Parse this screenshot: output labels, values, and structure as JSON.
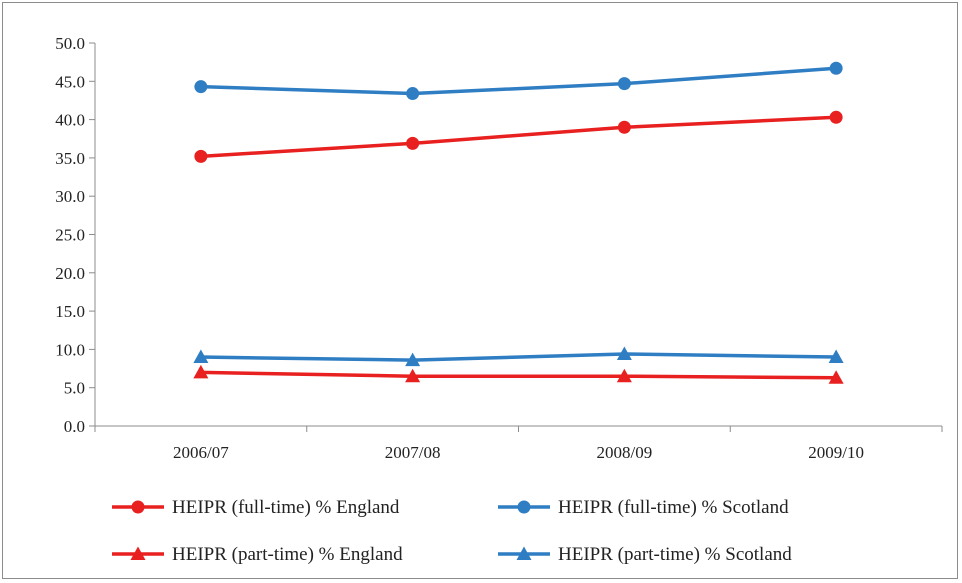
{
  "chart_data": {
    "type": "line",
    "categories": [
      "2006/07",
      "2007/08",
      "2008/09",
      "2009/10"
    ],
    "ylim": [
      0,
      50
    ],
    "yticks": [
      "0.0",
      "5.0",
      "10.0",
      "15.0",
      "20.0",
      "25.0",
      "30.0",
      "35.0",
      "40.0",
      "45.0",
      "50.0"
    ],
    "grid": false,
    "legend_position": "bottom",
    "series": [
      {
        "name": "HEIPR (full-time) % England",
        "color": "#e8201f",
        "marker": "circle",
        "values": [
          35.2,
          36.9,
          39.0,
          40.3
        ]
      },
      {
        "name": "HEIPR (full-time) % Scotland",
        "color": "#2f7ec4",
        "marker": "circle",
        "values": [
          44.3,
          43.4,
          44.7,
          46.7
        ]
      },
      {
        "name": "HEIPR (part-time) % England",
        "color": "#e8201f",
        "marker": "triangle",
        "values": [
          7.0,
          6.5,
          6.5,
          6.3
        ]
      },
      {
        "name": "HEIPR (part-time) % Scotland",
        "color": "#2f7ec4",
        "marker": "triangle",
        "values": [
          9.0,
          8.6,
          9.4,
          9.0
        ]
      }
    ]
  }
}
